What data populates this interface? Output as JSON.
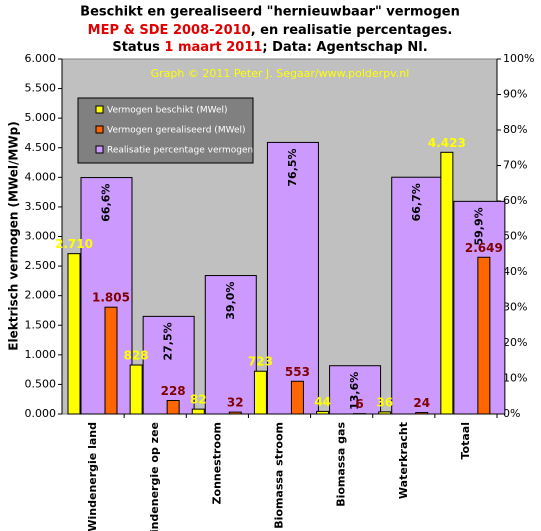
{
  "chart_data": {
    "type": "bar",
    "title": "Beschikt en gerealiseerd \"hernieuwbaar\" vermogen",
    "subtitle": [
      [
        "MEP & SDE 2008-2010",
        ", en realisatie percentages."
      ],
      [
        "Status ",
        "1 maart 2011",
        "; Data: Agentschap Nl."
      ]
    ],
    "annotation": "Graph © 2011 Peter J. Segaar/www.polderpv.nl",
    "ylabel": "Elektrisch vermogen (MWel/MWp)",
    "categories": [
      "Windenergie land",
      "Windenergie op zee",
      "Zonnestroom",
      "Biomassa stroom",
      "Biomassa gas",
      "Waterkracht",
      "Totaal"
    ],
    "series": [
      {
        "name": "Vermogen beschikt (MWel)",
        "color": "#ffff00",
        "label_color": "#ffff00",
        "values": [
          2710,
          828,
          82,
          723,
          44,
          36,
          4423
        ],
        "value_labels": [
          "2.710",
          "828",
          "82",
          "723",
          "44",
          "36",
          "4.423"
        ]
      },
      {
        "name": "Vermogen gerealiseerd (MWel)",
        "color": "#ff6600",
        "label_color": "#800000",
        "values": [
          1805,
          228,
          32,
          553,
          6,
          24,
          2649
        ],
        "value_labels": [
          "1.805",
          "228",
          "32",
          "553",
          "6",
          "24",
          "2.649"
        ]
      },
      {
        "name": "Realisatie percentage vermogen",
        "color": "#cc99ff",
        "label_color": "#000000",
        "axis": "y2",
        "values": [
          66.6,
          27.5,
          39.0,
          76.5,
          13.6,
          66.7,
          59.9
        ],
        "value_labels": [
          "66,6%",
          "27,5%",
          "39,0%",
          "76,5%",
          "13,6%",
          "66,7%",
          "59,9%"
        ]
      }
    ],
    "ylim": [
      0,
      6000
    ],
    "yticks": [
      {
        "value": 0,
        "label": "0.000"
      },
      {
        "value": 500,
        "label": "0.500"
      },
      {
        "value": 1000,
        "label": "1.000"
      },
      {
        "value": 1500,
        "label": "1.500"
      },
      {
        "value": 2000,
        "label": "2.000"
      },
      {
        "value": 2500,
        "label": "2.500"
      },
      {
        "value": 3000,
        "label": "3.000"
      },
      {
        "value": 3500,
        "label": "3.500"
      },
      {
        "value": 4000,
        "label": "4.000"
      },
      {
        "value": 4500,
        "label": "4.500"
      },
      {
        "value": 5000,
        "label": "5.000"
      },
      {
        "value": 5500,
        "label": "5.500"
      },
      {
        "value": 6000,
        "label": "6.000"
      }
    ],
    "y2lim": [
      0,
      100
    ],
    "y2ticks": [
      {
        "value": 0,
        "label": "0%"
      },
      {
        "value": 10,
        "label": "10%"
      },
      {
        "value": 20,
        "label": "20%"
      },
      {
        "value": 30,
        "label": "30%"
      },
      {
        "value": 40,
        "label": "40%"
      },
      {
        "value": 50,
        "label": "50%"
      },
      {
        "value": 60,
        "label": "60%"
      },
      {
        "value": 70,
        "label": "70%"
      },
      {
        "value": 80,
        "label": "80%"
      },
      {
        "value": 90,
        "label": "90%"
      },
      {
        "value": 100,
        "label": "100%"
      }
    ],
    "grid": false,
    "legend": "top-left"
  }
}
